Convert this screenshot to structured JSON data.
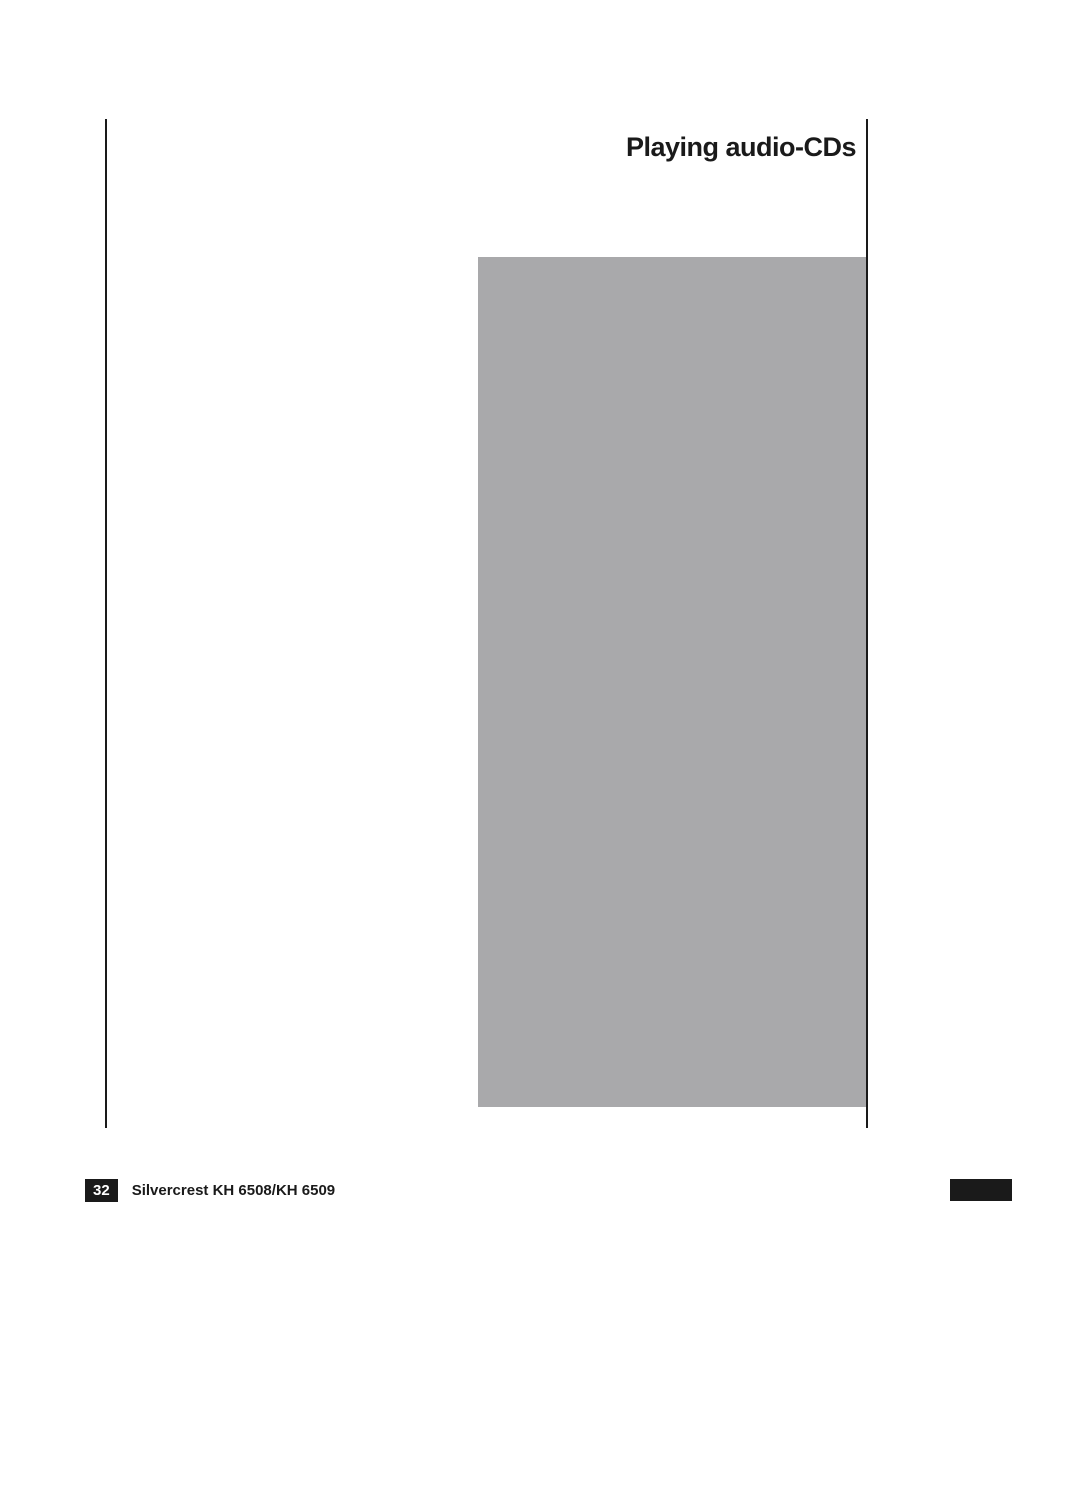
{
  "section": {
    "title": "Playing audio-CDs"
  },
  "greyBlock": {
    "background_color": "#a9a9ab"
  },
  "footer": {
    "page_number": "32",
    "product_label": "Silvercrest KH 6508/KH 6509"
  },
  "colors": {
    "text": "#1a1a1a",
    "page_bg": "#ffffff",
    "badge_bg": "#1a1a1a",
    "badge_text": "#ffffff"
  }
}
